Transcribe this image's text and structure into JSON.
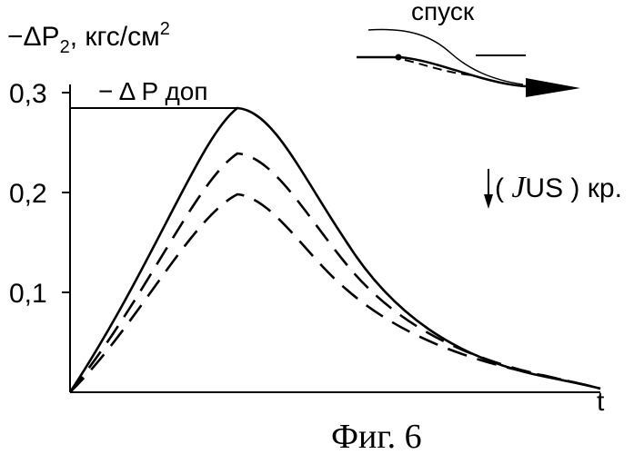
{
  "chart_data": {
    "type": "line",
    "ylabel_main": "−ΔP",
    "ylabel_sub": "2",
    "ylabel_units": ", кгс/см",
    "ylabel_exp": "2",
    "xlabel": "t",
    "ylim": [
      0,
      0.3
    ],
    "yticks": [
      {
        "value": 0.1,
        "label": "0,1"
      },
      {
        "value": 0.2,
        "label": "0,2"
      },
      {
        "value": 0.3,
        "label": "0,3"
      }
    ],
    "limit_line": {
      "value": 0.288,
      "label": "− Δ P доп"
    },
    "series": [
      {
        "style": "solid",
        "peak_x": 0.323,
        "peak_y": 0.288
      },
      {
        "style": "dashed",
        "peak_x": 0.323,
        "peak_y": 0.24
      },
      {
        "style": "dashed",
        "peak_x": 0.323,
        "peak_y": 0.198
      }
    ],
    "arrow_label_pre": "( ",
    "arrow_label_glyph": "J",
    "arrow_label_post": "US ) кр.",
    "inset_label": "спуск",
    "caption": "Фиг. 6"
  }
}
